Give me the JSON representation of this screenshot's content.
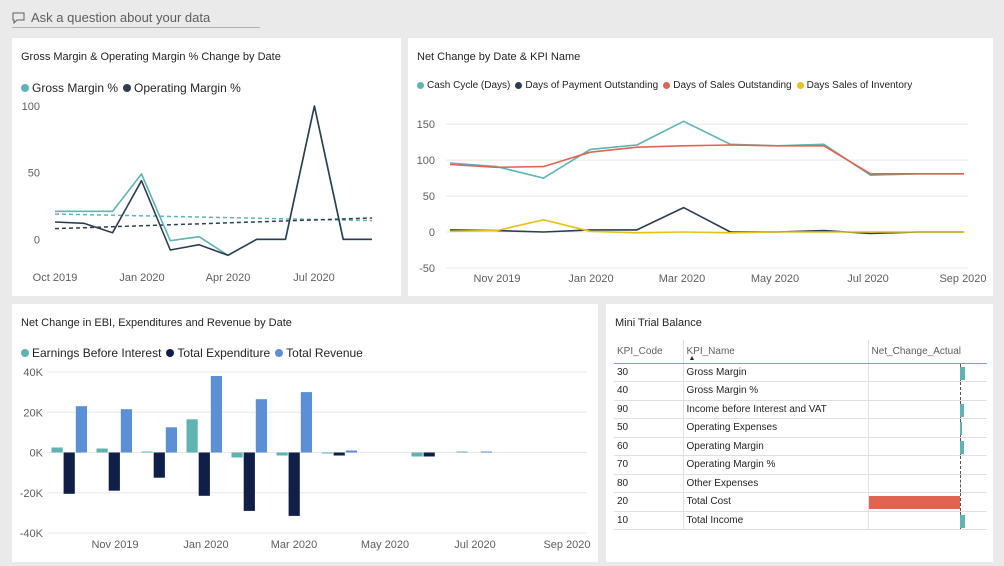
{
  "qa_bar": {
    "placeholder": "Ask a question about your data",
    "icon": "chat-bubble-icon"
  },
  "colors": {
    "teal": "#5fb4b2",
    "navy": "#2d3e50",
    "red": "#e06452",
    "yellow": "#e6c21b",
    "darknavy": "#0f1f48",
    "blue": "#5b8fd6",
    "page_bg": "#eaeaea",
    "tile_bg": "#ffffff"
  },
  "chart_data": [
    {
      "id": "margin_chart",
      "type": "line",
      "title": "Gross Margin & Operating Margin % Change by Date",
      "x": [
        "2019-10",
        "2019-11",
        "2019-12",
        "2020-01",
        "2020-02",
        "2020-03",
        "2020-04",
        "2020-05",
        "2020-06",
        "2020-07",
        "2020-08",
        "2020-09"
      ],
      "x_ticks": [
        "Oct 2019",
        "Jan 2020",
        "Apr 2020",
        "Jul 2020"
      ],
      "y_ticks": [
        "100",
        "50",
        "0"
      ],
      "ylim": [
        -20,
        100
      ],
      "series": [
        {
          "name": "Gross Margin %",
          "color": "#5fb4b2",
          "values": [
            21,
            21,
            21,
            49,
            -1,
            2,
            -12,
            0,
            0,
            100,
            0,
            0
          ]
        },
        {
          "name": "Operating Margin %",
          "color": "#2d3e50",
          "values": [
            13,
            12,
            5,
            44,
            -8,
            -4,
            -12,
            0,
            0,
            100,
            0,
            0
          ]
        }
      ],
      "trendlines": [
        {
          "series": "Gross Margin %",
          "style": "dashed",
          "start": 19,
          "end": 14
        },
        {
          "series": "Operating Margin %",
          "style": "dashed",
          "start": 8,
          "end": 16
        }
      ]
    },
    {
      "id": "kpi_chart",
      "type": "line",
      "title": "Net Change by Date & KPI Name",
      "x": [
        "2019-10",
        "2019-11",
        "2019-12",
        "2020-01",
        "2020-02",
        "2020-03",
        "2020-04",
        "2020-05",
        "2020-06",
        "2020-07",
        "2020-08",
        "2020-09"
      ],
      "x_ticks": [
        "Nov 2019",
        "Jan 2020",
        "Mar 2020",
        "May 2020",
        "Jul 2020",
        "Sep 2020"
      ],
      "y_ticks": [
        "150",
        "100",
        "50",
        "0",
        "-50"
      ],
      "ylim": [
        -50,
        160
      ],
      "series": [
        {
          "name": "Cash Cycle (Days)",
          "color": "#5fb4b2",
          "values": [
            96,
            91,
            75,
            115,
            121,
            154,
            122,
            120,
            122,
            79,
            81,
            81
          ]
        },
        {
          "name": "Days of Payment Outstanding",
          "color": "#2d3e50",
          "values": [
            3,
            2,
            0,
            3,
            3,
            34,
            0,
            0,
            2,
            -2,
            0,
            0
          ]
        },
        {
          "name": "Days of Sales Outstanding",
          "color": "#e06452",
          "values": [
            94,
            90,
            91,
            111,
            118,
            120,
            121,
            120,
            120,
            81,
            81,
            81
          ]
        },
        {
          "name": "Days Sales of Inventory",
          "color": "#e6c21b",
          "values": [
            1,
            2,
            17,
            1,
            -1,
            0,
            -1,
            0,
            0,
            0,
            0,
            0
          ]
        }
      ]
    },
    {
      "id": "ebi_chart",
      "type": "bar",
      "title": "Net Change in EBI, Expenditures and Revenue by Date",
      "categories": [
        "2019-10",
        "2019-11",
        "2019-12",
        "2020-01",
        "2020-02",
        "2020-03",
        "2020-04",
        "2020-05",
        "2020-06",
        "2020-07",
        "2020-08",
        "2020-09"
      ],
      "x_ticks": [
        "Nov 2019",
        "Jan 2020",
        "Mar 2020",
        "May 2020",
        "Jul 2020",
        "Sep 2020"
      ],
      "y_ticks": [
        "40K",
        "20K",
        "0K",
        "-20K",
        "-40K"
      ],
      "ylim": [
        -40000,
        40000
      ],
      "series": [
        {
          "name": "Earnings Before Interest",
          "color": "#5fb4b2",
          "values": [
            2500,
            2000,
            500,
            16500,
            -2500,
            -1500,
            -500,
            0,
            -2000,
            500,
            0,
            0
          ]
        },
        {
          "name": "Total Expenditure",
          "color": "#0f1f48",
          "values": [
            -20500,
            -19000,
            -12500,
            -21500,
            -29000,
            -31500,
            -1500,
            0,
            -2000,
            0,
            0,
            0
          ]
        },
        {
          "name": "Total Revenue",
          "color": "#5b8fd6",
          "values": [
            23000,
            21500,
            12500,
            38000,
            26500,
            30000,
            1000,
            0,
            0,
            500,
            0,
            0
          ]
        }
      ]
    }
  ],
  "trial_balance": {
    "title": "Mini Trial Balance",
    "headers": {
      "code": "KPI_Code",
      "name": "KPI_Name",
      "value": "Net_Change_Actual"
    },
    "rows": [
      {
        "code": "30",
        "name": "Gross Margin",
        "value_pct": 20,
        "color": "#5fb4b2"
      },
      {
        "code": "40",
        "name": "Gross Margin %",
        "value_pct": 0,
        "color": "#5fb4b2"
      },
      {
        "code": "90",
        "name": "Income before Interest and VAT",
        "value_pct": 14,
        "color": "#5fb4b2"
      },
      {
        "code": "50",
        "name": "Operating Expenses",
        "value_pct": 10,
        "color": "#5fb4b2"
      },
      {
        "code": "60",
        "name": "Operating Margin",
        "value_pct": 14,
        "color": "#5fb4b2"
      },
      {
        "code": "70",
        "name": "Operating Margin %",
        "value_pct": 0,
        "color": "#5fb4b2"
      },
      {
        "code": "80",
        "name": "Other Expenses",
        "value_pct": 0,
        "color": "#5fb4b2"
      },
      {
        "code": "20",
        "name": "Total Cost",
        "value_pct": -100,
        "color": "#e06452"
      },
      {
        "code": "10",
        "name": "Total Income",
        "value_pct": 20,
        "color": "#5fb4b2"
      }
    ]
  }
}
